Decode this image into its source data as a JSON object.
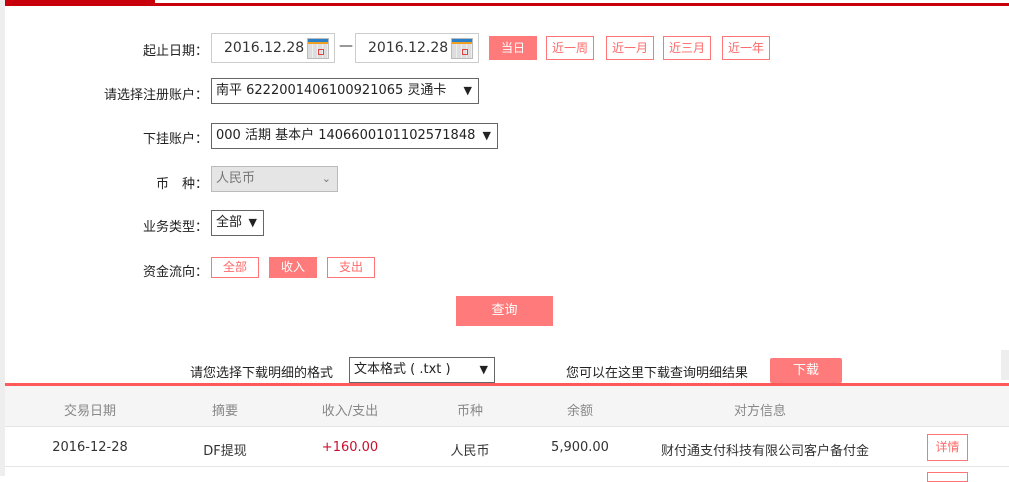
{
  "filters": {
    "date_label": "起止日期：",
    "start_date": "2016.12.28",
    "date_sep": "—",
    "end_date": "2016.12.28",
    "quick_ranges": [
      "当日",
      "近一周",
      "近一月",
      "近三月",
      "近一年"
    ],
    "account_label": "请选择注册账户：",
    "account_value": "南平 6222001406100921065 灵通卡",
    "subaccount_label": "下挂账户：",
    "subaccount_value": "000 活期 基本户 1406600101102571848",
    "currency_label": "币　种：",
    "currency_value": "人民币",
    "biztype_label": "业务类型：",
    "biztype_value": "全部",
    "flow_label": "资金流向：",
    "flow_options": [
      "全部",
      "收入",
      "支出"
    ],
    "flow_selected": "收入",
    "query_button": "查询"
  },
  "download": {
    "format_label": "请您选择下载明细的格式",
    "format_value": "文本格式 ( .txt )",
    "hint": "您可以在这里下载查询明细结果",
    "button": "下载"
  },
  "table": {
    "headers": [
      "交易日期",
      "摘要",
      "收入/支出",
      "币种",
      "余额",
      "对方信息"
    ],
    "rows": [
      {
        "date": "2016-12-28",
        "summary": "DF提现",
        "amount": "+160.00",
        "currency": "人民币",
        "balance": "5,900.00",
        "counterparty": "财付通支付科技有限公司客户备付金",
        "action": "详情"
      }
    ]
  },
  "colors": {
    "brand_red": "#c8000b",
    "accent": "#ff7a7a",
    "amount_income": "#c8102e"
  }
}
